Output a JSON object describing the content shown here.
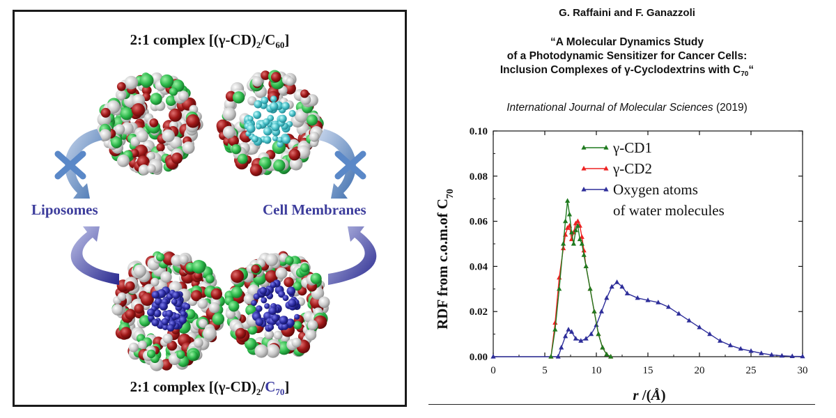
{
  "left_panel": {
    "top_title_main": "2:1 complex [(γ-CD)",
    "top_title_sub2": "2",
    "top_title_slash": "/C",
    "top_title_sub60": "60",
    "top_title_close": "]",
    "bottom_title_main": "2:1 complex [(γ-CD)",
    "bottom_title_sub2": "2",
    "bottom_title_slash": "/",
    "bottom_title_c": "C",
    "bottom_title_sub70": "70",
    "bottom_title_close": "]",
    "label_left": "Liposomes",
    "label_right": "Cell Membranes"
  },
  "paper": {
    "authors": "G. Raffaini and F. Ganazzoli",
    "title_line1": "“A Molecular Dynamics Study",
    "title_line2": "of a Photodynamic Sensitizer for Cancer Cells:",
    "title_line3": "Inclusion Complexes of γ-Cyclodextrins with C",
    "title_sub": "70",
    "title_end": "“",
    "journal": "International Journal of Molecular Sciences",
    "year": "(2019)"
  },
  "colors": {
    "accent_blue": "#3a3aa0",
    "series1": "#1f7a1f",
    "series2": "#ee2222",
    "series3": "#2e2e9a"
  },
  "chart_data": {
    "type": "line",
    "ylabel_main": "RDF from c.o.m.of C",
    "ylabel_sub": "70",
    "xlabel_r": "r",
    "xlabel_rest": " /(",
    "xlabel_unit": "Å",
    "xlabel_close": ")",
    "xlim": [
      0,
      30
    ],
    "ylim": [
      0,
      0.1
    ],
    "xticks": [
      "0",
      "5",
      "10",
      "15",
      "20",
      "25",
      "30"
    ],
    "yticks": [
      "0.00",
      "0.02",
      "0.04",
      "0.06",
      "0.08",
      "0.10"
    ],
    "legend_placement": "top-right",
    "series": [
      {
        "name": "γ-CD1",
        "color": "#1f7a1f",
        "x": [
          5.6,
          6.0,
          6.4,
          6.8,
          7.0,
          7.2,
          7.4,
          7.6,
          7.8,
          8.0,
          8.2,
          8.4,
          8.6,
          8.8,
          9.0,
          9.4,
          9.8,
          10.2,
          10.6,
          11.0,
          11.4
        ],
        "y": [
          0.0,
          0.012,
          0.03,
          0.05,
          0.06,
          0.069,
          0.063,
          0.055,
          0.05,
          0.056,
          0.058,
          0.052,
          0.05,
          0.045,
          0.04,
          0.03,
          0.02,
          0.01,
          0.004,
          0.001,
          0.0
        ]
      },
      {
        "name": "γ-CD2",
        "color": "#ee2222",
        "x": [
          5.6,
          6.0,
          6.4,
          6.8,
          7.0,
          7.2,
          7.4,
          7.6,
          7.8,
          8.0,
          8.2,
          8.4,
          8.6,
          8.8,
          9.0,
          9.4,
          9.8,
          10.2,
          10.6,
          11.0,
          11.4
        ],
        "y": [
          0.0,
          0.015,
          0.035,
          0.048,
          0.054,
          0.057,
          0.058,
          0.052,
          0.055,
          0.059,
          0.06,
          0.058,
          0.053,
          0.047,
          0.04,
          0.03,
          0.02,
          0.01,
          0.004,
          0.001,
          0.0
        ]
      },
      {
        "name": "Oxygen atoms",
        "name2": "of water molecules",
        "color": "#2e2e9a",
        "x": [
          0,
          6.3,
          6.6,
          7.0,
          7.3,
          7.6,
          8.0,
          8.5,
          9.0,
          9.5,
          10.0,
          10.5,
          11.0,
          11.5,
          12.0,
          12.5,
          13.0,
          14.0,
          15.0,
          16.0,
          17.0,
          18.0,
          19.0,
          20.0,
          21.0,
          22.0,
          23.0,
          24.0,
          25.0,
          26.0,
          27.0,
          28.0,
          29.0,
          30.0
        ],
        "y": [
          0,
          0.0,
          0.004,
          0.009,
          0.012,
          0.011,
          0.008,
          0.007,
          0.008,
          0.01,
          0.014,
          0.02,
          0.026,
          0.031,
          0.033,
          0.031,
          0.028,
          0.026,
          0.025,
          0.024,
          0.022,
          0.019,
          0.016,
          0.013,
          0.01,
          0.007,
          0.005,
          0.0035,
          0.0025,
          0.0015,
          0.0008,
          0.0004,
          0.0002,
          0.0001
        ]
      }
    ]
  }
}
